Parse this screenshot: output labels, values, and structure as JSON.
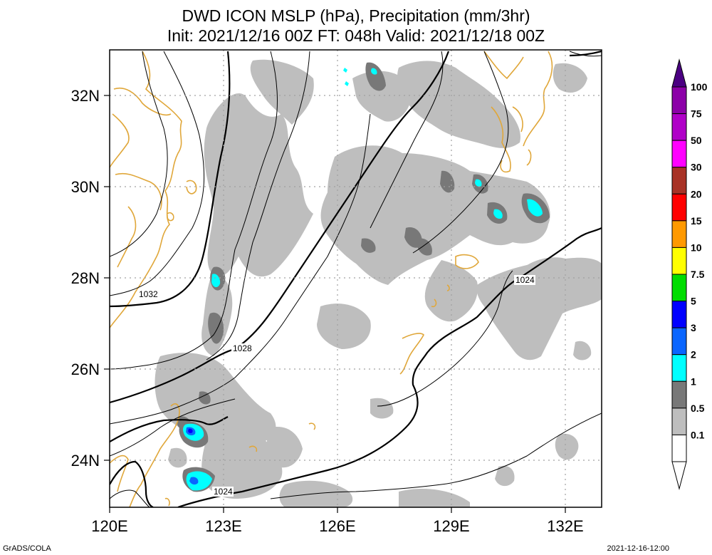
{
  "title": {
    "line1": "DWD ICON MSLP (hPa), Precipitation (mm/3hr)",
    "line2": "Init: 2021/12/16 00Z  FT: 048h  Valid: 2021/12/18 00Z"
  },
  "axes": {
    "lon_ticks": [
      "120E",
      "123E",
      "126E",
      "129E",
      "132E"
    ],
    "lat_ticks": [
      "32N",
      "30N",
      "28N",
      "26N",
      "24N"
    ],
    "lon_range": [
      120,
      133
    ],
    "lat_range": [
      23,
      33
    ]
  },
  "isobar_labels": [
    {
      "text": "1032"
    },
    {
      "text": "1028"
    },
    {
      "text": "1024"
    },
    {
      "text": "1024"
    }
  ],
  "colorbar": {
    "levels": [
      "100",
      "75",
      "50",
      "30",
      "20",
      "15",
      "10",
      "7.5",
      "5",
      "3",
      "2",
      "1",
      "0.5",
      "0.1"
    ],
    "colors": [
      "#8c00a8",
      "#b000c8",
      "#ff00ff",
      "#a83226",
      "#ff0000",
      "#ff9900",
      "#ffff00",
      "#00dd00",
      "#0000ff",
      "#0a66ff",
      "#00ffff",
      "#787878",
      "#bebebe",
      "#ffffff"
    ],
    "top_color": "#4b0082"
  },
  "footer": {
    "left": "GrADS/COLA",
    "right": "2021-12-16-12:00"
  },
  "colors": {
    "coast": "#e0a73a",
    "precip_light": "#bebebe",
    "precip_mid": "#787878",
    "precip_cyan": "#00ffff",
    "precip_blue": "#0a66ff",
    "precip_dblue": "#0000ff",
    "grid": "#a0a0a0"
  }
}
